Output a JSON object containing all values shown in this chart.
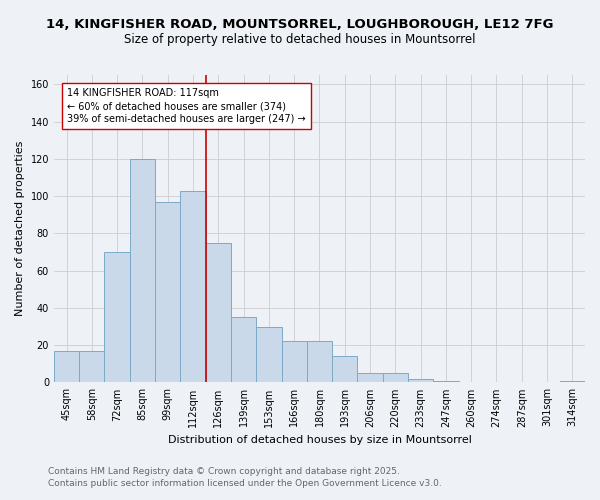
{
  "title_line1": "14, KINGFISHER ROAD, MOUNTSORREL, LOUGHBOROUGH, LE12 7FG",
  "title_line2": "Size of property relative to detached houses in Mountsorrel",
  "xlabel": "Distribution of detached houses by size in Mountsorrel",
  "ylabel": "Number of detached properties",
  "categories": [
    "45sqm",
    "58sqm",
    "72sqm",
    "85sqm",
    "99sqm",
    "112sqm",
    "126sqm",
    "139sqm",
    "153sqm",
    "166sqm",
    "180sqm",
    "193sqm",
    "206sqm",
    "220sqm",
    "233sqm",
    "247sqm",
    "260sqm",
    "274sqm",
    "287sqm",
    "301sqm",
    "314sqm"
  ],
  "values": [
    17,
    17,
    70,
    120,
    97,
    103,
    75,
    35,
    30,
    22,
    22,
    14,
    5,
    5,
    2,
    1,
    0,
    0,
    0,
    0,
    1
  ],
  "bar_color": "#c9d9ea",
  "bar_edgecolor": "#7aaac8",
  "bar_linewidth": 0.7,
  "vline_x": 5.5,
  "vline_color": "#cc0000",
  "vline_linewidth": 1.2,
  "annotation_text": "14 KINGFISHER ROAD: 117sqm\n← 60% of detached houses are smaller (374)\n39% of semi-detached houses are larger (247) →",
  "annotation_box_edgecolor": "#cc0000",
  "annotation_box_facecolor": "#ffffff",
  "ylim": [
    0,
    165
  ],
  "yticks": [
    0,
    20,
    40,
    60,
    80,
    100,
    120,
    140,
    160
  ],
  "grid_color": "#cccccc",
  "background_color": "#eef2f7",
  "footer_line1": "Contains HM Land Registry data © Crown copyright and database right 2025.",
  "footer_line2": "Contains public sector information licensed under the Open Government Licence v3.0.",
  "title_fontsize": 9.5,
  "subtitle_fontsize": 8.5,
  "axis_label_fontsize": 8,
  "tick_fontsize": 7,
  "annotation_fontsize": 7,
  "footer_fontsize": 6.5,
  "ylabel_fontsize": 8
}
